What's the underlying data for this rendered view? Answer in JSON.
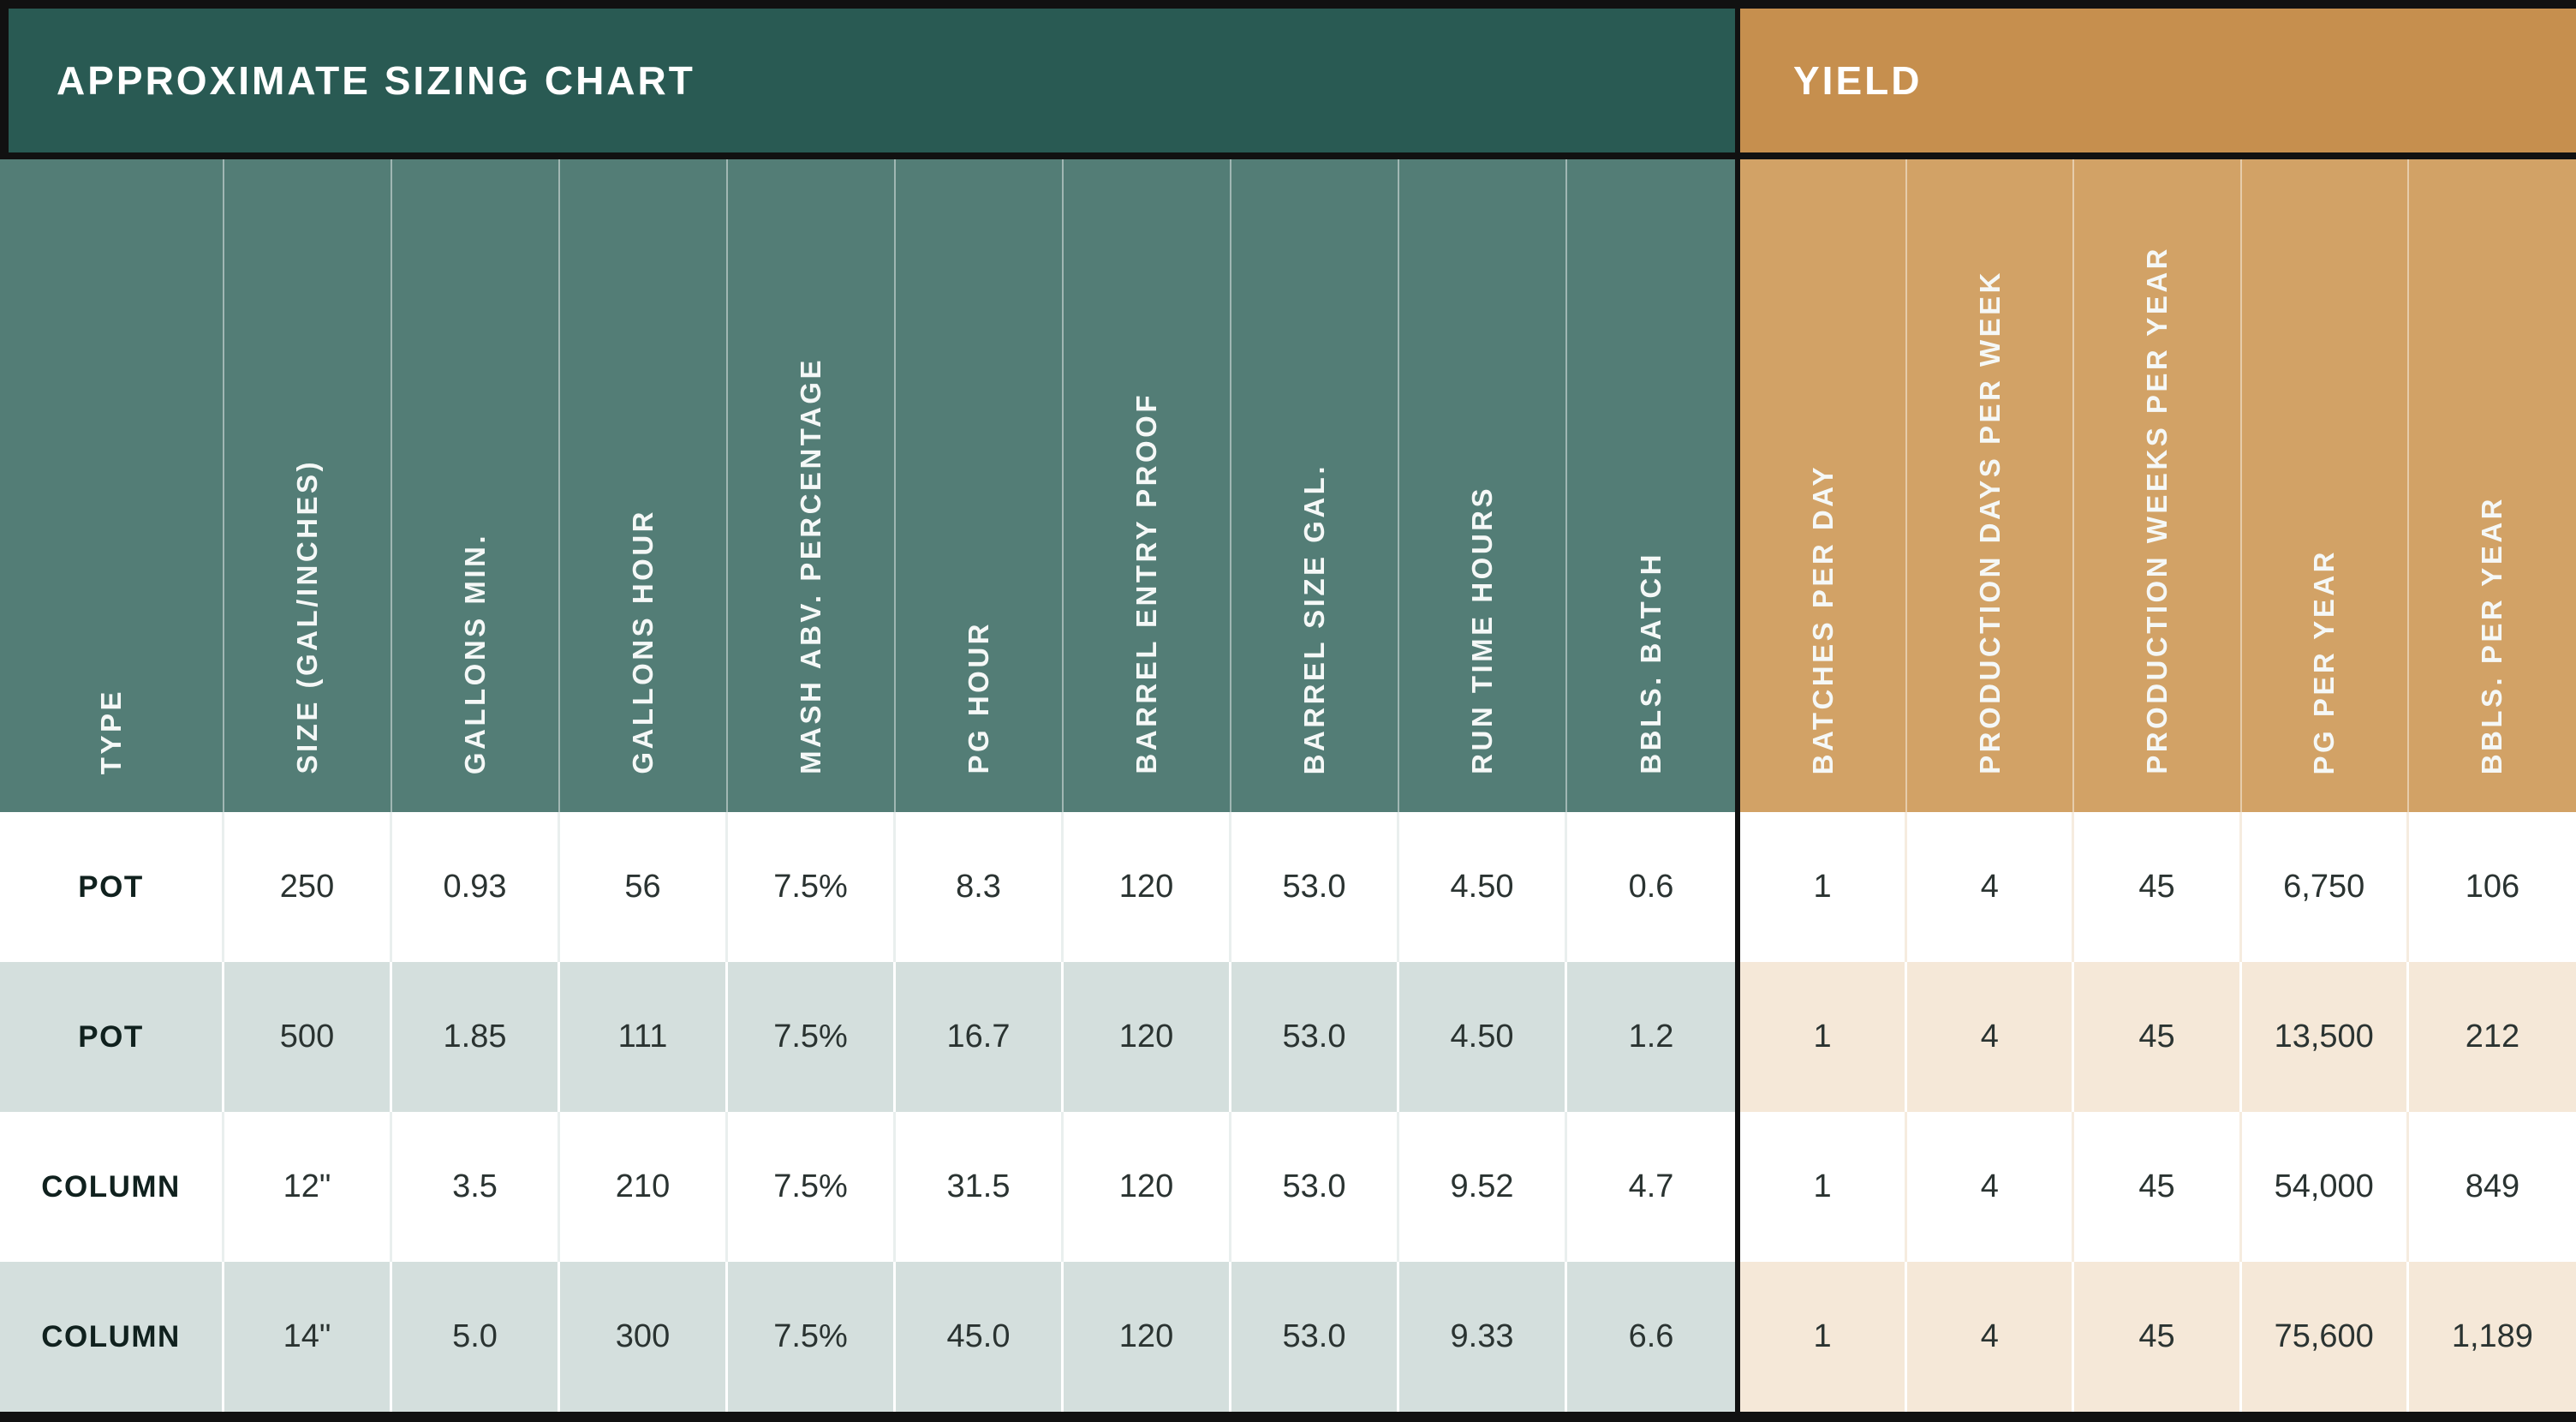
{
  "chart_data": {
    "type": "table",
    "section_titles": {
      "sizing": "APPROXIMATE SIZING CHART",
      "yield": "YIELD"
    },
    "columns": [
      {
        "label": "TYPE",
        "group": "sizing"
      },
      {
        "label": "SIZE (GAL/INCHES)",
        "group": "sizing"
      },
      {
        "label": "GALLONS MIN.",
        "group": "sizing"
      },
      {
        "label": "GALLONS HOUR",
        "group": "sizing"
      },
      {
        "label": "MASH ABV. PERCENTAGE",
        "group": "sizing"
      },
      {
        "label": "PG HOUR",
        "group": "sizing"
      },
      {
        "label": "BARREL ENTRY PROOF",
        "group": "sizing"
      },
      {
        "label": "BARREL SIZE GAL.",
        "group": "sizing"
      },
      {
        "label": "RUN TIME HOURS",
        "group": "sizing"
      },
      {
        "label": "BBLS. BATCH",
        "group": "sizing"
      },
      {
        "label": "BATCHES PER DAY",
        "group": "yield"
      },
      {
        "label": "PRODUCTION DAYS PER WEEK",
        "group": "yield"
      },
      {
        "label": "PRODUCTION WEEKS PER YEAR",
        "group": "yield"
      },
      {
        "label": "PG PER YEAR",
        "group": "yield"
      },
      {
        "label": "BBLS. PER YEAR",
        "group": "yield"
      }
    ],
    "rows": [
      [
        "POT",
        "250",
        "0.93",
        "56",
        "7.5%",
        "8.3",
        "120",
        "53.0",
        "4.50",
        "0.6",
        "1",
        "4",
        "45",
        "6,750",
        "106"
      ],
      [
        "POT",
        "500",
        "1.85",
        "111",
        "7.5%",
        "16.7",
        "120",
        "53.0",
        "4.50",
        "1.2",
        "1",
        "4",
        "45",
        "13,500",
        "212"
      ],
      [
        "COLUMN",
        "12\"",
        "3.5",
        "210",
        "7.5%",
        "31.5",
        "120",
        "53.0",
        "9.52",
        "4.7",
        "1",
        "4",
        "45",
        "54,000",
        "849"
      ],
      [
        "COLUMN",
        "14\"",
        "5.0",
        "300",
        "7.5%",
        "45.0",
        "120",
        "53.0",
        "9.33",
        "6.6",
        "1",
        "4",
        "45",
        "75,600",
        "1,189"
      ]
    ],
    "colors": {
      "teal_dark": "#295a53",
      "teal": "#537d76",
      "orange_dark": "#c68f4e",
      "orange": "#d2a266",
      "row_teal_tint": "#d4dfdd",
      "row_orange_tint": "#f5e8d8",
      "border_black": "#111111"
    }
  }
}
